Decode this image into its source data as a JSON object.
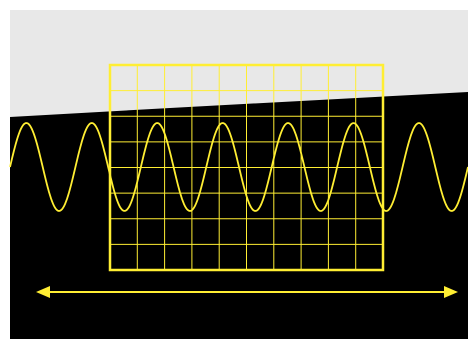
{
  "colors": {
    "background": "#000000",
    "band": "#e8e8e8",
    "frame": "#ffffff",
    "screen_grid": "#ffee33",
    "wave": "#ffee33",
    "arrow": "#ffee33"
  },
  "screen_grid": {
    "columns": 10,
    "rows": 8
  },
  "wave": {
    "cycles_across_panel": 7
  },
  "arrow": {
    "heads": "both",
    "icon": "double-arrow-icon"
  }
}
